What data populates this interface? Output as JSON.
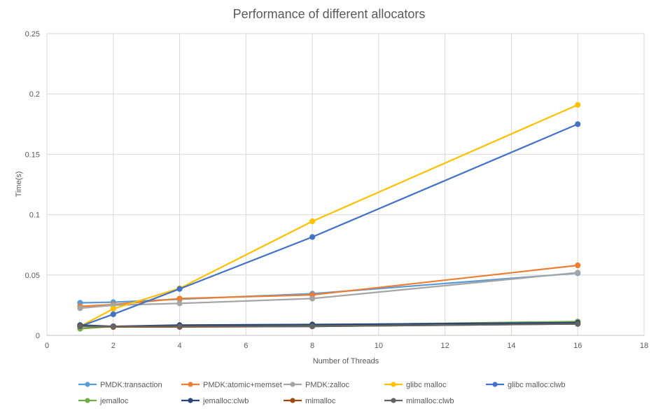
{
  "chart_data": {
    "type": "line",
    "title": "Performance of different allocators",
    "xlabel": "Number of Threads",
    "ylabel": "Time(s)",
    "xlim": [
      0,
      18
    ],
    "ylim": [
      0,
      0.25
    ],
    "x_ticks": [
      0,
      2,
      4,
      6,
      8,
      10,
      12,
      14,
      16,
      18
    ],
    "y_ticks": [
      0,
      0.05,
      0.1,
      0.15,
      0.2,
      0.25
    ],
    "y_tick_labels": [
      "0",
      "0.05",
      "0.1",
      "0.15",
      "0.2",
      "0.25"
    ],
    "grid": true,
    "legend_position": "bottom",
    "x": [
      1,
      2,
      4,
      8,
      16
    ],
    "series": [
      {
        "name": "PMDK:transaction",
        "color": "#5B9BD5",
        "values": [
          0.027,
          0.0275,
          0.03,
          0.0345,
          0.0515
        ]
      },
      {
        "name": "PMDK:atomic+memset",
        "color": "#ED7D31",
        "values": [
          0.024,
          0.0255,
          0.0305,
          0.0335,
          0.058
        ]
      },
      {
        "name": "PMDK:zalloc",
        "color": "#A5A5A5",
        "values": [
          0.0225,
          0.025,
          0.0265,
          0.0305,
          0.052
        ]
      },
      {
        "name": "glibc malloc",
        "color": "#FFC000",
        "values": [
          0.0075,
          0.022,
          0.039,
          0.0945,
          0.191
        ]
      },
      {
        "name": "glibc malloc:clwb",
        "color": "#4472C4",
        "values": [
          0.0075,
          0.0175,
          0.0385,
          0.0815,
          0.175
        ]
      },
      {
        "name": "jemalloc",
        "color": "#70AD47",
        "values": [
          0.0055,
          0.0075,
          0.0075,
          0.0085,
          0.0115
        ]
      },
      {
        "name": "jemalloc:clwb",
        "color": "#264478",
        "values": [
          0.0085,
          0.0075,
          0.0085,
          0.009,
          0.0105
        ]
      },
      {
        "name": "mimalloc",
        "color": "#9E480E",
        "values": [
          0.0075,
          0.007,
          0.007,
          0.0075,
          0.0095
        ]
      },
      {
        "name": "mimalloc:clwb",
        "color": "#636363",
        "values": [
          0.0075,
          0.0075,
          0.0075,
          0.0075,
          0.0095
        ]
      }
    ]
  }
}
